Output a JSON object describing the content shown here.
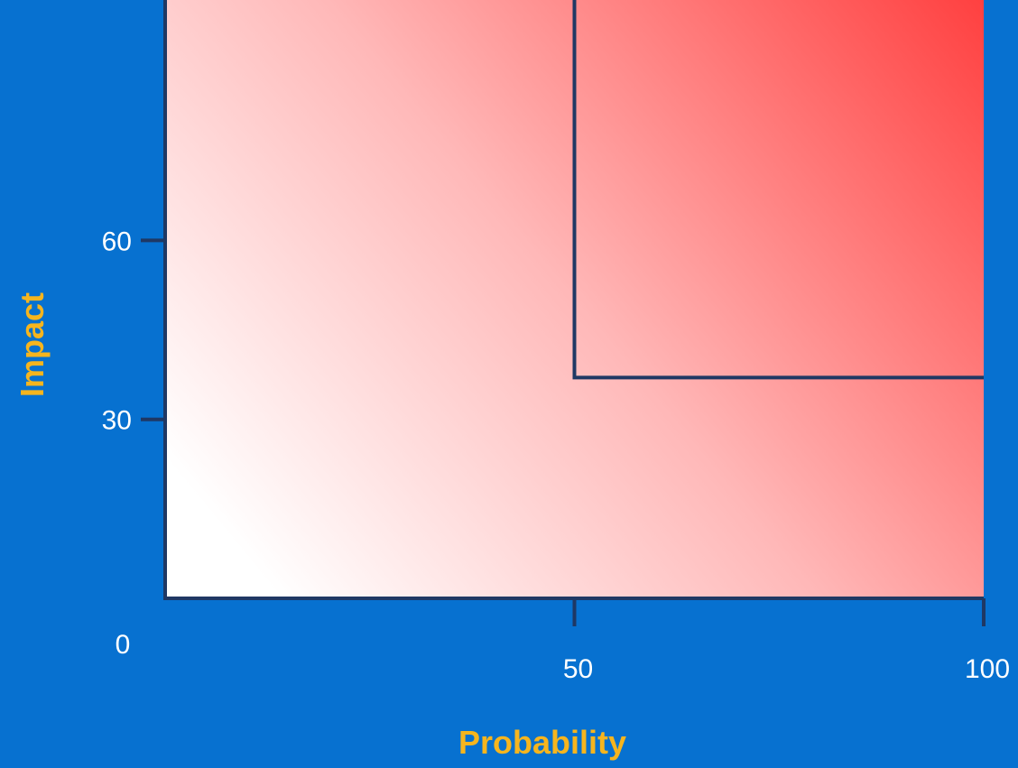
{
  "chart_data": {
    "type": "heatmap",
    "title": "",
    "xlabel": "Probability",
    "ylabel": "Impact",
    "xlim": [
      0,
      100
    ],
    "ylim": [
      0,
      100
    ],
    "x_ticks": [
      {
        "value": 0,
        "label": "0"
      },
      {
        "value": 50,
        "label": "50"
      },
      {
        "value": 100,
        "label": "100"
      }
    ],
    "y_ticks": [
      {
        "value": 30,
        "label": "30"
      },
      {
        "value": 60,
        "label": "60"
      }
    ],
    "high_risk_zone": {
      "x_min": 50,
      "x_max": 100,
      "y_min": 37,
      "y_max": 100
    },
    "gradient_colors": {
      "low": "#ffffff",
      "mid": "#ffb8b8",
      "high": "#ff4040"
    },
    "grid": false,
    "legend": "none"
  },
  "colors": {
    "background": "#0771d0",
    "axis": "#1f3864",
    "tick_label": "#ffffff",
    "axis_title": "#f6b51e"
  }
}
